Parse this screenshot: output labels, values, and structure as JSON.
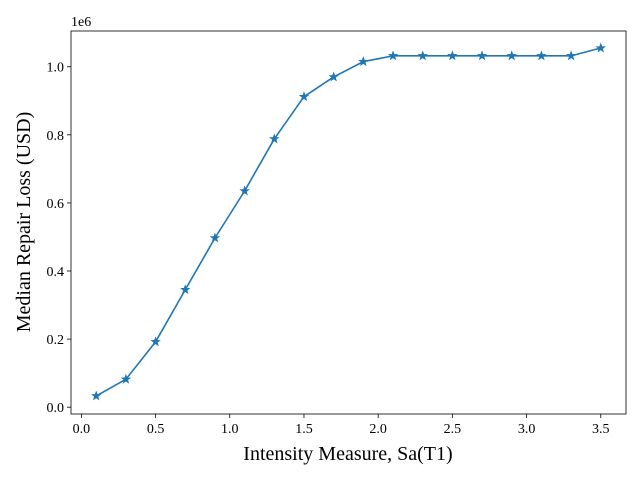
{
  "chart_data": {
    "type": "line",
    "title": "",
    "xlabel": "Intensity Measure, Sa(T1)",
    "ylabel": "Median Repair Loss (USD)",
    "y_offset_label": "1e6",
    "xlim": [
      -0.07,
      3.67
    ],
    "ylim": [
      -0.02,
      1.105
    ],
    "x_ticks": [
      0.0,
      0.5,
      1.0,
      1.5,
      2.0,
      2.5,
      3.0,
      3.5
    ],
    "x_tick_labels": [
      "0.0",
      "0.5",
      "1.0",
      "1.5",
      "2.0",
      "2.5",
      "3.0",
      "3.5"
    ],
    "y_ticks": [
      0.0,
      0.2,
      0.4,
      0.6,
      0.8,
      1.0
    ],
    "y_tick_labels": [
      "0.0",
      "0.2",
      "0.4",
      "0.6",
      "0.8",
      "1.0"
    ],
    "grid": false,
    "marker": "star",
    "color": "#1f77b4",
    "series": [
      {
        "x": [
          0.1,
          0.3,
          0.5,
          0.7,
          0.9,
          1.1,
          1.3,
          1.5,
          1.7,
          1.9,
          2.1,
          2.3,
          2.5,
          2.7,
          2.9,
          3.1,
          3.3,
          3.5
        ],
        "y": [
          0.033,
          0.082,
          0.192,
          0.345,
          0.497,
          0.635,
          0.788,
          0.912,
          0.97,
          1.015,
          1.032,
          1.032,
          1.032,
          1.032,
          1.032,
          1.032,
          1.032,
          1.055
        ]
      }
    ]
  }
}
